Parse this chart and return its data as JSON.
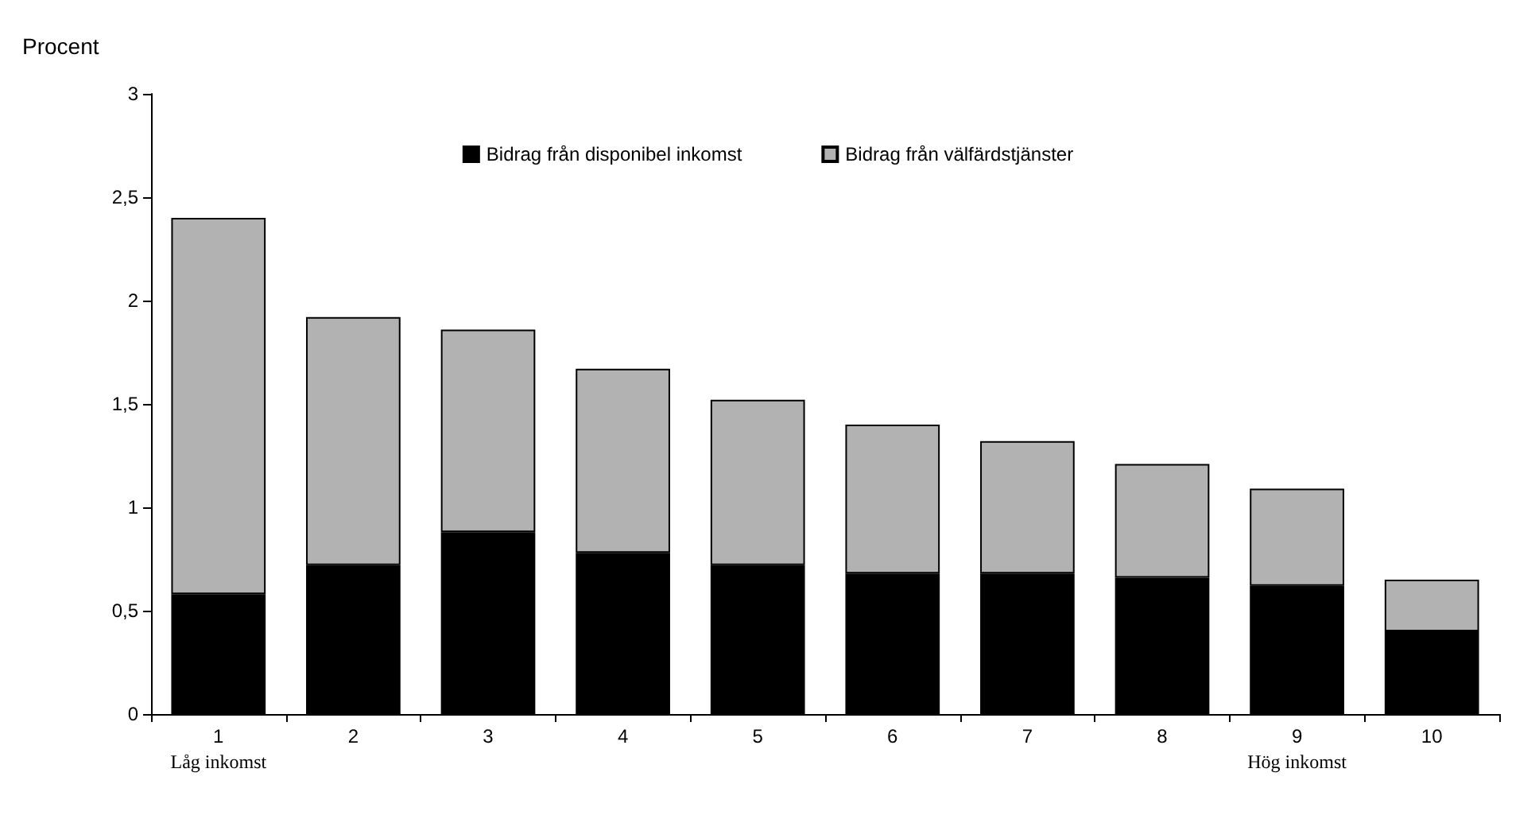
{
  "chart_data": {
    "type": "bar",
    "stacked": true,
    "ylabel": "Procent",
    "categories": [
      "1",
      "2",
      "3",
      "4",
      "5",
      "6",
      "7",
      "8",
      "9",
      "10"
    ],
    "series": [
      {
        "name": "Bidrag från disponibel inkomst",
        "color": "#000000",
        "values": [
          0.58,
          0.72,
          0.88,
          0.78,
          0.72,
          0.68,
          0.68,
          0.66,
          0.62,
          0.4
        ]
      },
      {
        "name": "Bidrag från välfärdstjänster",
        "color": "#b2b2b2",
        "values": [
          1.82,
          1.2,
          0.98,
          0.89,
          0.8,
          0.72,
          0.64,
          0.55,
          0.47,
          0.25
        ]
      }
    ],
    "ylim": [
      0,
      3
    ],
    "yticks": [
      0,
      {
        "value": 0.5,
        "label": "0,5"
      },
      1,
      {
        "value": 1.5,
        "label": "1,5"
      },
      2,
      {
        "value": 2.5,
        "label": "2,5"
      },
      3
    ],
    "grid": false,
    "legend": "top",
    "annotations": [
      "Låg inkomst",
      "Hög inkomst"
    ]
  }
}
